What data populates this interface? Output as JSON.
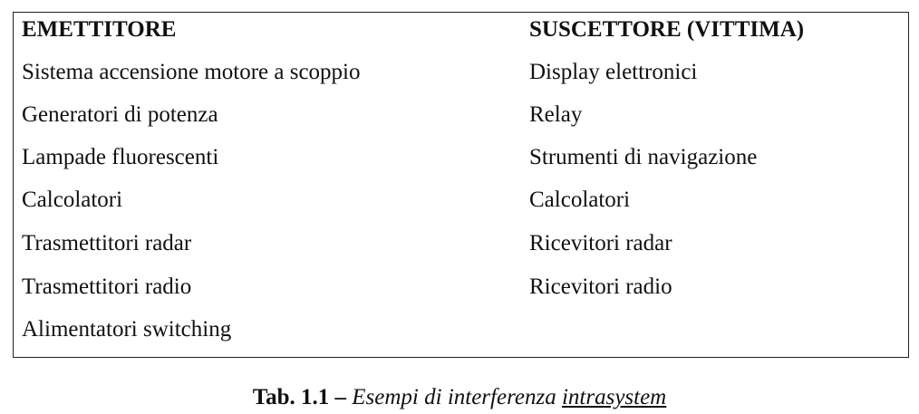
{
  "table": {
    "headers": {
      "left": "EMETTITORE",
      "right": "SUSCETTORE (VITTIMA)"
    },
    "rows": [
      {
        "emitter": "Sistema accensione motore a scoppio",
        "victim": "Display elettronici"
      },
      {
        "emitter": "Generatori di potenza",
        "victim": "Relay"
      },
      {
        "emitter": "Lampade fluorescenti",
        "victim": "Strumenti di navigazione"
      },
      {
        "emitter": "Calcolatori",
        "victim": "Calcolatori"
      },
      {
        "emitter": "Trasmettitori radar",
        "victim": "Ricevitori radar"
      },
      {
        "emitter": "Trasmettitori radio",
        "victim": "Ricevitori radio"
      },
      {
        "emitter": "Alimentatori switching",
        "victim": ""
      }
    ]
  },
  "caption": {
    "label": "Tab. 1.1 –",
    "description": "Esempi di interferenza",
    "term": "intrasystem"
  }
}
